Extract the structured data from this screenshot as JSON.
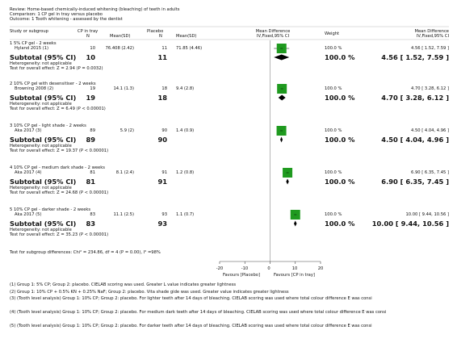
{
  "review": {
    "line1": "Review:  Home-based chemically-induced whitening (bleaching) of teeth in adults",
    "line2": "Comparison:  1 CP gel in tray versus placebo",
    "line3": "Outcome:  1 Tooth whitening - assessed by the dentist"
  },
  "columns": {
    "study": "Study or subgroup",
    "cp": "CP in tray",
    "placebo": "Placebo",
    "n1": "N",
    "mean1": "Mean(SD)",
    "n2": "N",
    "mean2": "Mean(SD)",
    "md": "Mean Difference",
    "md_sub": "IV,Fixed,95% CI",
    "weight": "Weight",
    "md2": "Mean Difference",
    "md2_sub": "IV,Fixed,95% CI"
  },
  "subgroups": [
    {
      "title": "1 5% CP gel - 2 weeks",
      "study": "Hyland 2015 (1)",
      "n1": "10",
      "m1": "76.408 (2.42)",
      "n2": "11",
      "m2": "71.85 (4.46)",
      "weight": "100.0 %",
      "ci": "4.56 [ 1.52, 7.59 ]",
      "subtotal_label": "Subtotal (95% CI)",
      "sub_n1": "10",
      "sub_n2": "11",
      "sub_weight": "100.0 %",
      "sub_ci": "4.56 [ 1.52, 7.59 ]",
      "het": "Heterogeneity: not applicable",
      "test": "Test for overall effect: Z = 2.94 (P = 0.0032)"
    },
    {
      "title": "2 10% CP gel with desensitiser - 2 weeks",
      "study": "Browning 2008 (2)",
      "n1": "19",
      "m1": "14.1 (1.3)",
      "n2": "18",
      "m2": "9.4 (2.8)",
      "weight": "100.0 %",
      "ci": "4.70 [ 3.28, 6.12 ]",
      "subtotal_label": "Subtotal (95% CI)",
      "sub_n1": "19",
      "sub_n2": "18",
      "sub_weight": "100.0 %",
      "sub_ci": "4.70 [ 3.28, 6.12 ]",
      "het": "Heterogeneity: not applicable",
      "test": "Test for overall effect: Z = 6.49 (P < 0.00001)"
    },
    {
      "title": "3 10% CP gel - light shade - 2 weeks",
      "study": "Aka 2017 (3)",
      "n1": "89",
      "m1": "5.9 (2)",
      "n2": "90",
      "m2": "1.4 (0.9)",
      "weight": "100.0 %",
      "ci": "4.50 [ 4.04, 4.96 ]",
      "subtotal_label": "Subtotal (95% CI)",
      "sub_n1": "89",
      "sub_n2": "90",
      "sub_weight": "100.0 %",
      "sub_ci": "4.50 [ 4.04, 4.96 ]",
      "het": "Heterogeneity: not applicable",
      "test": "Test for overall effect: Z = 19.37 (P < 0.00001)"
    },
    {
      "title": "4 10% CP gel - medium dark shade - 2 weeks",
      "study": "Aka 2017 (4)",
      "n1": "81",
      "m1": "8.1 (2.4)",
      "n2": "91",
      "m2": "1.2 (0.8)",
      "weight": "100.0 %",
      "ci": "6.90 [ 6.35, 7.45 ]",
      "subtotal_label": "Subtotal (95% CI)",
      "sub_n1": "81",
      "sub_n2": "91",
      "sub_weight": "100.0 %",
      "sub_ci": "6.90 [ 6.35, 7.45 ]",
      "het": "Heterogeneity: not applicable",
      "test": "Test for overall effect: Z = 24.68 (P < 0.00001)"
    },
    {
      "title": "5 10% CP gel - darker shade - 2 weeks",
      "study": "Aka 2017 (5)",
      "n1": "83",
      "m1": "11.1 (2.5)",
      "n2": "93",
      "m2": "1.1 (0.7)",
      "weight": "100.0 %",
      "ci": "10.00 [ 9.44, 10.56 ]",
      "subtotal_label": "Subtotal (95% CI)",
      "sub_n1": "83",
      "sub_n2": "93",
      "sub_weight": "100.0 %",
      "sub_ci": "10.00 [ 9.44, 10.56 ]",
      "het": "Heterogeneity: not applicable",
      "test": "Test for overall effect: Z = 35.23 (P < 0.00001)"
    }
  ],
  "subgroup_test": "Test for subgroup differences: Chi² = 234.86, df = 4 (P = 0.00), I² =98%",
  "axis": {
    "ticks": [
      "-20",
      "-10",
      "0",
      "10",
      "20"
    ],
    "left_label": "Favours [Placebo]",
    "right_label": "Favours [CP in tray]"
  },
  "footnotes": [
    "(1) Group 1: 5% CP; Group 2: placebo. CIELAB scoring was used. Greater L value indicates greater lightness",
    "(2) Group 1: 10% CP + 0.5% KN + 0.25% NaF; Group 2: placebo. Vita shade gide was used. Greater value indicates greater lightness",
    "(3) (Tooth level analysis) Group 1: 10% CP; Group 2: placebo. For lighter teeth after 14 days of bleaching. CIELAB scoring was used where total colour difference E was consi",
    "(4) (Tooth level analysis) Group 1: 10% CP; Group 2: placebo. For medium dark teeth after 14 days of bleaching. CIELAB scoring was used where total colour difference E was consi",
    "(5) (Tooth level analysis) Group 1: 10% CP; Group 2: placebo. For darker teeth after 14 days of bleaching. CIELAB scoring was used where total colour difference E was consi"
  ],
  "chart_data": {
    "type": "forest",
    "xlim": [
      -20,
      20
    ],
    "studies": [
      {
        "estimate": 4.56,
        "lower": 1.52,
        "upper": 7.59
      },
      {
        "estimate": 4.7,
        "lower": 3.28,
        "upper": 6.12
      },
      {
        "estimate": 4.5,
        "lower": 4.04,
        "upper": 4.96
      },
      {
        "estimate": 6.9,
        "lower": 6.35,
        "upper": 7.45
      },
      {
        "estimate": 10.0,
        "lower": 9.44,
        "upper": 10.56
      }
    ],
    "colors": {
      "box": "#1f9a1f",
      "diamond": "#000000",
      "axis": "#888888"
    }
  }
}
